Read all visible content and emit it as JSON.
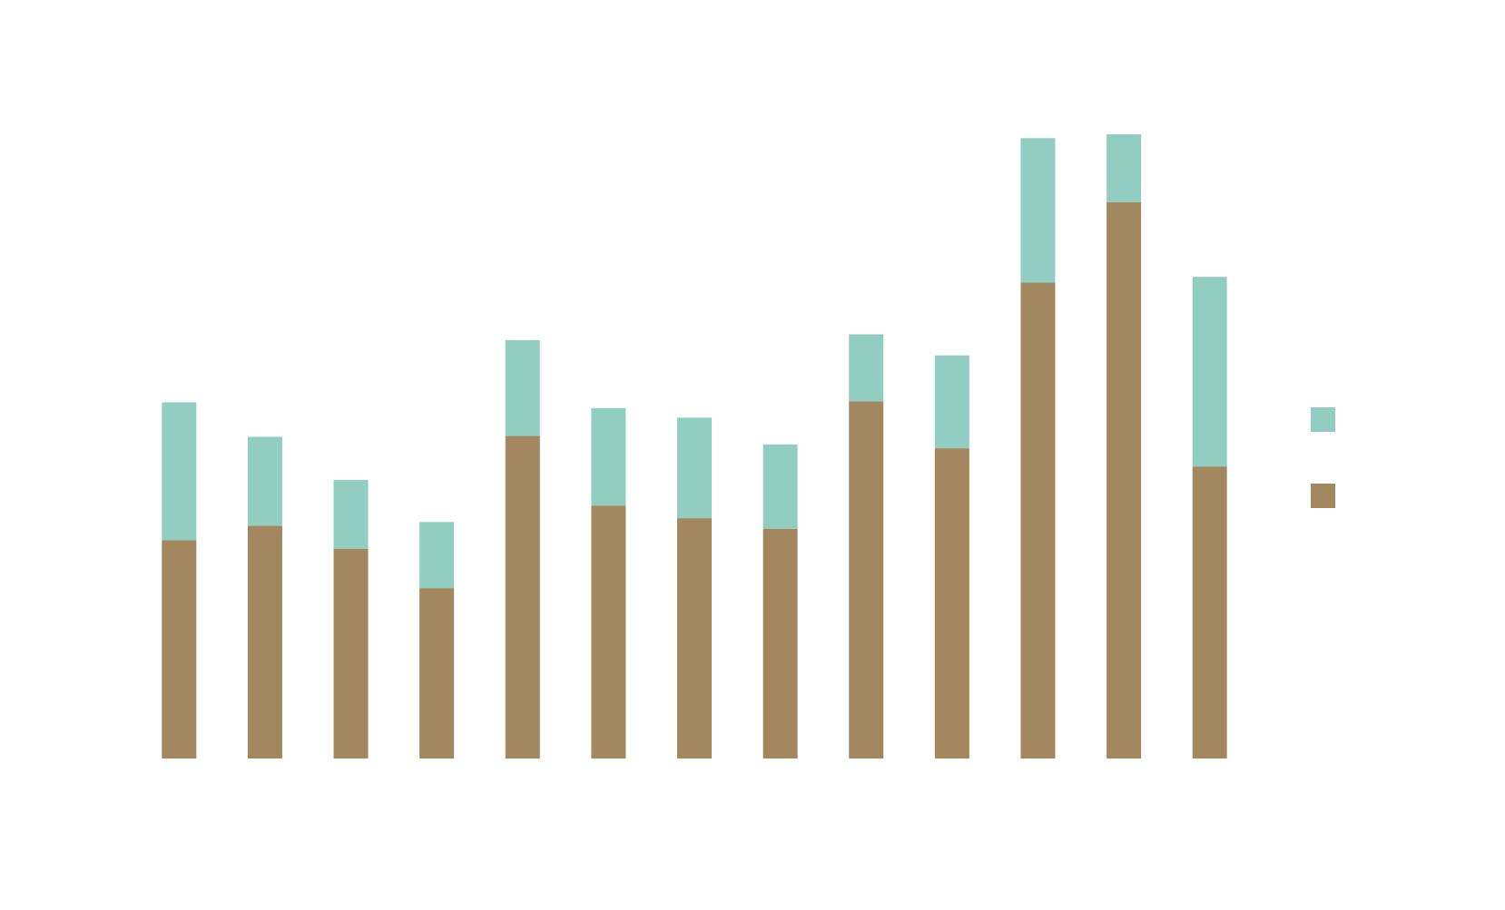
{
  "chart_data": {
    "type": "bar",
    "stacked": true,
    "categories": [
      "",
      "",
      "",
      "",
      "",
      "",
      "",
      "",
      "",
      "",
      "",
      "",
      ""
    ],
    "series": [
      {
        "color": "#a3885f",
        "values": [
          228,
          243,
          219,
          178,
          337,
          264,
          251,
          240,
          373,
          324,
          497,
          581,
          305
        ]
      },
      {
        "color": "#91cdc1",
        "values": [
          144,
          93,
          72,
          69,
          100,
          102,
          105,
          88,
          70,
          97,
          151,
          71,
          198
        ]
      }
    ],
    "legend": {
      "placement": "right",
      "entries": [
        {
          "series_index": 1,
          "label": ""
        },
        {
          "series_index": 0,
          "label": ""
        }
      ]
    },
    "ylim": [
      0,
      760
    ],
    "grid": false,
    "axes_visible": false,
    "title": "",
    "xlabel": "",
    "ylabel": ""
  }
}
